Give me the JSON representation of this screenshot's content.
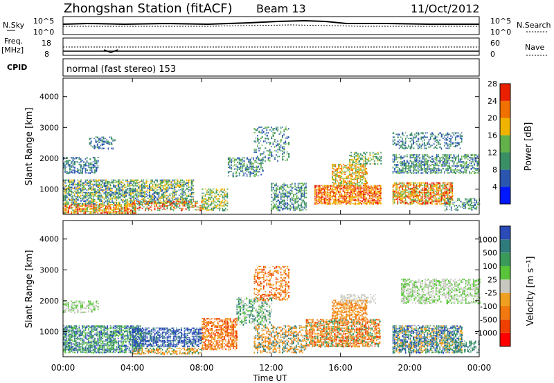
{
  "header": {
    "title": "Zhongshan Station (fitACF)",
    "beam": "Beam 13",
    "date": "11/Oct/2012"
  },
  "status_strip": {
    "nsky_label": "N.Sky",
    "nsky_ticks": [
      "10^5",
      "10^0"
    ],
    "nsearch_label": "N.Search",
    "nsearch_ticks": [
      "10^5",
      "10^0"
    ],
    "freq_label_1": "Freq.",
    "freq_label_2": "[MHz]",
    "freq_ticks": [
      "18",
      "8"
    ],
    "nave_label": "Nave",
    "nave_ticks": [
      "60",
      "0"
    ],
    "cpid_label": "CPID",
    "cpid_text": "normal (fast stereo) 153"
  },
  "colors": {
    "power_scale": [
      "#0018ff",
      "#2a56b0",
      "#3a8f64",
      "#62b14b",
      "#f0b400",
      "#f07000",
      "#e92000"
    ],
    "velocity_scale": [
      "#2a4bb8",
      "#2f7a7a",
      "#3a9a5a",
      "#58c43a",
      "#c8c8c0",
      "#f0a020",
      "#f07a10",
      "#f04000",
      "#ff0000"
    ]
  },
  "chart_data": [
    {
      "type": "heatmap",
      "panel": "power",
      "ylabel": "Slant Range [km]",
      "xlabel": "Time UT",
      "x_ticks": [
        "00:00",
        "04:00",
        "08:00",
        "12:00",
        "16:00",
        "20:00",
        "00:00"
      ],
      "y_ticks": [
        1000,
        2000,
        3000,
        4000
      ],
      "xlim": [
        0,
        24
      ],
      "ylim": [
        180,
        4600
      ],
      "colorbar": {
        "label": "Power [dB]",
        "ticks": [
          4,
          8,
          12,
          16,
          20,
          24,
          28
        ]
      }
    },
    {
      "type": "heatmap",
      "panel": "velocity",
      "ylabel": "Slant Range [km]",
      "xlabel": "Time UT",
      "x_ticks": [
        "00:00",
        "04:00",
        "08:00",
        "12:00",
        "16:00",
        "20:00",
        "00:00"
      ],
      "y_ticks": [
        1000,
        2000,
        3000,
        4000
      ],
      "xlim": [
        0,
        24
      ],
      "ylim": [
        180,
        4600
      ],
      "colorbar": {
        "label": "Velocity [m s⁻¹]",
        "ticks": [
          1000,
          500,
          100,
          25,
          -25,
          -100,
          -500,
          -1000
        ]
      }
    }
  ],
  "axis_title": "Time UT"
}
